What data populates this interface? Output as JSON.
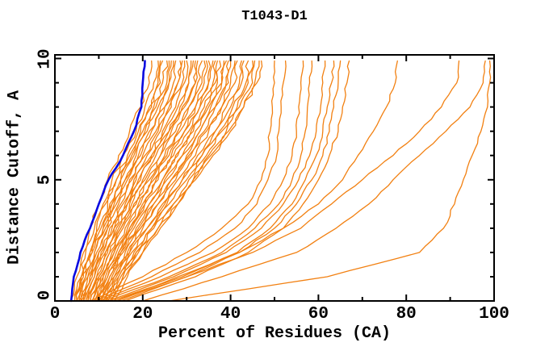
{
  "window": {
    "background": "#ffffff"
  },
  "chart": {
    "title": "T1043-D1",
    "xlabel": "Percent of Residues (CA)",
    "ylabel": "Distance Cutoff, A"
  },
  "chart_data": {
    "type": "line",
    "title": "T1043-D1",
    "xlabel": "Percent of Residues (CA)",
    "ylabel": "Distance Cutoff, A",
    "xlim": [
      0,
      100
    ],
    "ylim": [
      0,
      10.15
    ],
    "grid": false,
    "legend": false,
    "x_ticks_major": [
      0,
      20,
      40,
      60,
      80,
      100
    ],
    "x_ticks_minor": [
      10,
      30,
      50,
      70,
      90
    ],
    "y_ticks_major": [
      0,
      5,
      10
    ],
    "y_ticks_minor": [
      1,
      2,
      3,
      4,
      6,
      7,
      8,
      9
    ],
    "colors": {
      "model_line": "#F28011",
      "highlight_line": "#0A0AE0",
      "axis": "#000000"
    },
    "cutoffs": [
      0,
      1,
      2,
      3,
      4,
      5,
      6,
      7,
      8,
      9,
      9.9
    ],
    "highlight_percent": [
      3.7,
      4.3,
      5.8,
      8,
      10,
      12.2,
      15.5,
      18,
      19.7,
      20,
      20.5
    ],
    "series_percent": [
      [
        3.5,
        5,
        6.5,
        8,
        10,
        12,
        14.5,
        17,
        19.5,
        21.5,
        22
      ],
      [
        4.5,
        6,
        7,
        9,
        11.5,
        13,
        15.5,
        18.5,
        20.5,
        22.5,
        23.5
      ],
      [
        5,
        6,
        8,
        9.5,
        11,
        14,
        16.5,
        19,
        22,
        23.5,
        24
      ],
      [
        4.5,
        6.5,
        8,
        10.5,
        12,
        14,
        17.5,
        19.5,
        21.5,
        24,
        24.5
      ],
      [
        5,
        6,
        8.5,
        10,
        12.5,
        15,
        17,
        20,
        23,
        24.5,
        25.5
      ],
      [
        5.5,
        7,
        8.5,
        11,
        13,
        15,
        18,
        21,
        22.5,
        25.5,
        26
      ],
      [
        5,
        7,
        9,
        11,
        13.5,
        16,
        18.5,
        20.5,
        23.5,
        26,
        26.5
      ],
      [
        6,
        7.5,
        9,
        11.5,
        13,
        16.5,
        19,
        22,
        24,
        26,
        27
      ],
      [
        6,
        8,
        9.5,
        12,
        14,
        16,
        19.5,
        21.5,
        25,
        27,
        27.5
      ],
      [
        5.5,
        7.5,
        10,
        12,
        14.5,
        17.5,
        20,
        23,
        25,
        28,
        28.5
      ],
      [
        6.5,
        8,
        10,
        13,
        15,
        17,
        20.5,
        23.5,
        26.5,
        28,
        29
      ],
      [
        6.5,
        8.5,
        11,
        12.5,
        15.5,
        18.5,
        21,
        24,
        26,
        29,
        29.5
      ],
      [
        7,
        9,
        10.5,
        13.5,
        16,
        18,
        22,
        24.5,
        27.5,
        29.5,
        30
      ],
      [
        6.5,
        9,
        11.5,
        13.5,
        16.5,
        19.5,
        22,
        25,
        28,
        30.5,
        31
      ],
      [
        7,
        9.5,
        11.5,
        14.5,
        16.5,
        19,
        22.5,
        26,
        28.5,
        30.5,
        31.5
      ],
      [
        7.5,
        9.5,
        12,
        14,
        17.5,
        20,
        23,
        26,
        29.5,
        32,
        32
      ],
      [
        7.5,
        10,
        12.5,
        15,
        17,
        20.5,
        24,
        26.5,
        29,
        32,
        32.5
      ],
      [
        8,
        10,
        12.5,
        15.5,
        18,
        21.5,
        24,
        27.5,
        30.5,
        32.5,
        33.5
      ],
      [
        8,
        10.5,
        13,
        15,
        18.5,
        21,
        25,
        28,
        30.5,
        33.5,
        34
      ],
      [
        8.5,
        10.5,
        13.5,
        16,
        19,
        22.5,
        25.5,
        28.5,
        32,
        34,
        34.5
      ],
      [
        8.5,
        11,
        13.5,
        16.5,
        19.5,
        22,
        26,
        29.5,
        32,
        35,
        35
      ],
      [
        9,
        11,
        14,
        17,
        20,
        23.5,
        26.5,
        29.5,
        33,
        35,
        36
      ],
      [
        9,
        11.5,
        14.5,
        17,
        20.5,
        23,
        27,
        30.5,
        33,
        36,
        36.5
      ],
      [
        9.5,
        12,
        14.5,
        17.5,
        20.5,
        24.5,
        27.5,
        31,
        34,
        36.5,
        37
      ],
      [
        9.5,
        12,
        15,
        18,
        21.5,
        24.5,
        28,
        31.5,
        34.5,
        37,
        37.5
      ],
      [
        10,
        12.5,
        15,
        18.5,
        21.5,
        25,
        29,
        32,
        35,
        38,
        38.5
      ],
      [
        10,
        12.5,
        15.5,
        19,
        22.5,
        25.5,
        29,
        33,
        35.5,
        38,
        39
      ],
      [
        10.5,
        13,
        16,
        19.5,
        22.5,
        26.5,
        30,
        33,
        36.5,
        39,
        39.5
      ],
      [
        10.5,
        13.5,
        16.5,
        19.5,
        23.5,
        26.5,
        30.5,
        34,
        36.5,
        39.5,
        40
      ],
      [
        11,
        13.5,
        17,
        20,
        23.5,
        27.5,
        31,
        34.5,
        38,
        40,
        41
      ],
      [
        11,
        14,
        17,
        21,
        24.5,
        28,
        32,
        35,
        38,
        41,
        41.5
      ],
      [
        11.5,
        14.5,
        17.5,
        21,
        25,
        29,
        32.5,
        36.5,
        39,
        42,
        42.5
      ],
      [
        11.5,
        14.5,
        18,
        22,
        25.5,
        29,
        33.5,
        36.5,
        40,
        42.5,
        43
      ],
      [
        12,
        15,
        18.5,
        22,
        26,
        30,
        33.5,
        37.5,
        40.5,
        43.5,
        44
      ],
      [
        12.5,
        15.5,
        18.5,
        22.5,
        27,
        30.5,
        34.5,
        38,
        41.5,
        44,
        45
      ],
      [
        12.5,
        15.5,
        19,
        23.5,
        27,
        31.5,
        35,
        39,
        42,
        45,
        45.5
      ],
      [
        13,
        16,
        20,
        23.5,
        28,
        31.5,
        35.5,
        39.5,
        43,
        45.5,
        46.5
      ],
      [
        13.5,
        16.5,
        20,
        24,
        28,
        32,
        36,
        40,
        43,
        46,
        47
      ],
      [
        8,
        20,
        30,
        38,
        44,
        47,
        48.5,
        49,
        49.5,
        50,
        50
      ],
      [
        9,
        22,
        33,
        41,
        46,
        48.5,
        50.5,
        51,
        51.5,
        52,
        52.5
      ],
      [
        10,
        24,
        36,
        44,
        49,
        52,
        54,
        55,
        55.5,
        56,
        56.5
      ],
      [
        11,
        26,
        38,
        45.5,
        51,
        54,
        56,
        57,
        57.5,
        58,
        58.5
      ],
      [
        12,
        27,
        39,
        47,
        52,
        55.5,
        58,
        59.5,
        60.5,
        61,
        61.5
      ],
      [
        13,
        29,
        41.5,
        49,
        54,
        57,
        59.5,
        61,
        62,
        63,
        63.5
      ],
      [
        14,
        30,
        42,
        50,
        55,
        58.5,
        61,
        62.5,
        63.5,
        64.5,
        65
      ],
      [
        16,
        32,
        44,
        52,
        56.5,
        60,
        62.5,
        64.5,
        65.5,
        66.5,
        67
      ],
      [
        14,
        28,
        42,
        52,
        60,
        65.5,
        69,
        72.5,
        75.5,
        77.5,
        78
      ],
      [
        15,
        30,
        45,
        56,
        63,
        70,
        77,
        83,
        88,
        91.5,
        92
      ],
      [
        20,
        38,
        55,
        64,
        71.5,
        77,
        83,
        89,
        94.5,
        97.5,
        98
      ],
      [
        26,
        62,
        83,
        88.5,
        91,
        93,
        95,
        97,
        98.5,
        99,
        99
      ]
    ]
  }
}
